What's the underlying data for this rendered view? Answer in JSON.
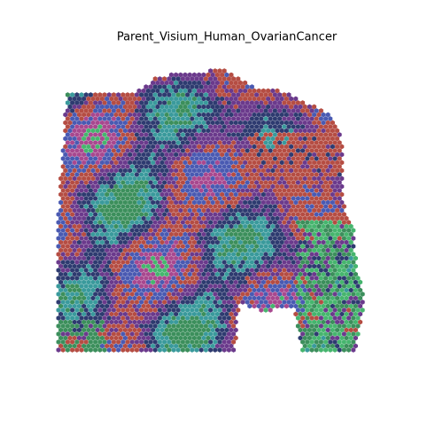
{
  "figure": {
    "title": "Parent_Visium_Human_OvarianCancer"
  }
}
